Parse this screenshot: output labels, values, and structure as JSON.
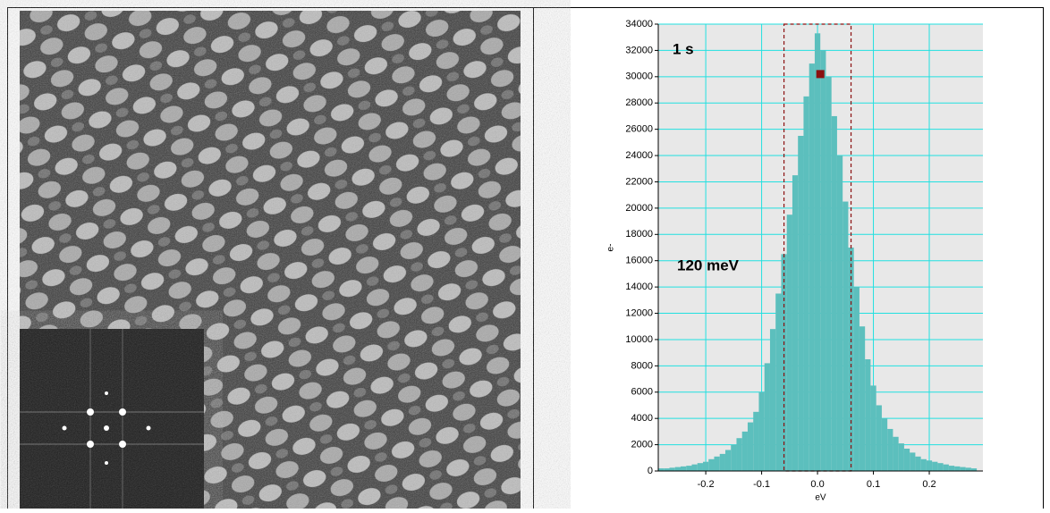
{
  "chart_data": {
    "type": "histogram",
    "bins": [
      -0.285,
      -0.275,
      -0.265,
      -0.255,
      -0.245,
      -0.235,
      -0.225,
      -0.215,
      -0.205,
      -0.195,
      -0.185,
      -0.175,
      -0.165,
      -0.155,
      -0.145,
      -0.135,
      -0.125,
      -0.115,
      -0.105,
      -0.095,
      -0.085,
      -0.075,
      -0.065,
      -0.055,
      -0.045,
      -0.035,
      -0.025,
      -0.015,
      -0.005,
      0.005,
      0.015,
      0.025,
      0.035,
      0.045,
      0.055,
      0.065,
      0.075,
      0.085,
      0.095,
      0.105,
      0.115,
      0.125,
      0.135,
      0.145,
      0.155,
      0.165,
      0.175,
      0.185,
      0.195,
      0.205,
      0.215,
      0.225,
      0.235,
      0.245,
      0.255,
      0.265,
      0.275,
      0.285
    ],
    "values": [
      200,
      200,
      250,
      300,
      350,
      400,
      500,
      600,
      700,
      900,
      1100,
      1300,
      1600,
      2000,
      2500,
      3000,
      3700,
      4500,
      6000,
      8200,
      10800,
      13500,
      16500,
      19500,
      22500,
      25500,
      28500,
      31000,
      33300,
      32000,
      30000,
      27000,
      24000,
      20500,
      17000,
      14000,
      11000,
      8500,
      6500,
      5000,
      4000,
      3200,
      2600,
      2100,
      1700,
      1400,
      1100,
      900,
      800,
      700,
      600,
      500,
      400,
      350,
      300,
      250,
      200
    ],
    "color": "#5cbfbd",
    "xlabel": "eV",
    "ylabel": "e-",
    "xlim": [
      -0.285,
      0.296
    ],
    "ylim": [
      0,
      34000
    ],
    "xticks": [
      -0.2,
      -0.1,
      {
        "value": 0,
        "label": "0.0"
      },
      0.1,
      0.2
    ],
    "yticks": [
      0,
      2000,
      4000,
      6000,
      8000,
      10000,
      12000,
      14000,
      16000,
      18000,
      20000,
      22000,
      24000,
      26000,
      28000,
      30000,
      32000,
      34000
    ],
    "grid": true,
    "annotations": [
      "1 s",
      "120 meV"
    ],
    "window": [
      -0.06,
      0.06
    ],
    "marker": {
      "x": 0.005,
      "y": 30200,
      "color": "#8b1010"
    }
  }
}
